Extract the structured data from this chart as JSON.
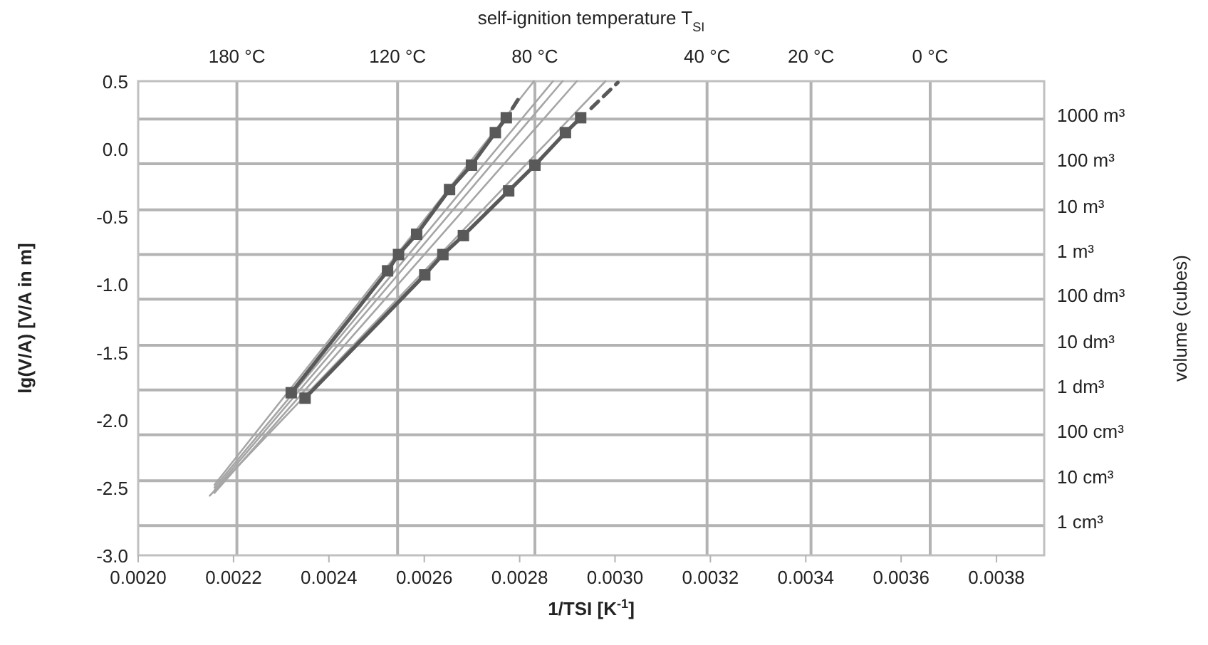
{
  "chart_data": {
    "type": "line",
    "xlabel": "1/TSI [K$^{-1}$]",
    "ylabel": "lg(V/A) [V/A in m]",
    "annotations": [
      "self-ignition temperature T$_{SI}$",
      "volume (cubes)"
    ],
    "xlim": [
      0.002,
      0.0039
    ],
    "ylim": [
      -3.0,
      0.5
    ],
    "xticks": [
      {
        "value": 0.002,
        "label": "0.0020"
      },
      {
        "value": 0.0022,
        "label": "0.0022"
      },
      {
        "value": 0.0024,
        "label": "0.0024"
      },
      {
        "value": 0.0026,
        "label": "0.0026"
      },
      {
        "value": 0.0028,
        "label": "0.0028"
      },
      {
        "value": 0.003,
        "label": "0.0030"
      },
      {
        "value": 0.0032,
        "label": "0.0032"
      },
      {
        "value": 0.0034,
        "label": "0.0034"
      },
      {
        "value": 0.0036,
        "label": "0.0036"
      },
      {
        "value": 0.0038,
        "label": "0.0038"
      }
    ],
    "yticks": [
      {
        "value": 0.5,
        "label": "0.5"
      },
      {
        "value": 0,
        "label": "0.0"
      },
      {
        "value": -0.5,
        "label": "-0.5"
      },
      {
        "value": -1,
        "label": "-1.0"
      },
      {
        "value": -1.5,
        "label": "-1.5"
      },
      {
        "value": -2,
        "label": "-2.0"
      },
      {
        "value": -2.5,
        "label": "-2.5"
      },
      {
        "value": -3,
        "label": "-3.0"
      }
    ],
    "ref_lines": [
      {
        "axis": "x",
        "value": 0.002207,
        "label": "180 °C",
        "color": "#b3b3b3"
      },
      {
        "axis": "x",
        "value": 0.002544,
        "label": "120 °C",
        "color": "#b3b3b3"
      },
      {
        "axis": "x",
        "value": 0.002832,
        "label": "80 °C",
        "color": "#b3b3b3"
      },
      {
        "axis": "x",
        "value": 0.003193,
        "label": "40 °C",
        "color": "#b3b3b3"
      },
      {
        "axis": "x",
        "value": 0.003411,
        "label": "20 °C",
        "color": "#b3b3b3"
      },
      {
        "axis": "x",
        "value": 0.003661,
        "label": "0 °C",
        "color": "#b3b3b3"
      },
      {
        "axis": "y",
        "value": 0.22,
        "label": "1000 m³",
        "color": "#b3b3b3"
      },
      {
        "axis": "y",
        "value": -0.11,
        "label": "100 m³",
        "color": "#b3b3b3"
      },
      {
        "axis": "y",
        "value": -0.45,
        "label": "10 m³",
        "color": "#b3b3b3"
      },
      {
        "axis": "y",
        "value": -0.78,
        "label": "1 m³",
        "color": "#b3b3b3"
      },
      {
        "axis": "y",
        "value": -1.11,
        "label": "100 dm³",
        "color": "#b3b3b3"
      },
      {
        "axis": "y",
        "value": -1.45,
        "label": "10 dm³",
        "color": "#b3b3b3"
      },
      {
        "axis": "y",
        "value": -1.78,
        "label": "1 dm³",
        "color": "#b3b3b3"
      },
      {
        "axis": "y",
        "value": -2.11,
        "label": "100 cm³",
        "color": "#b3b3b3"
      },
      {
        "axis": "y",
        "value": -2.45,
        "label": "10 cm³",
        "color": "#b3b3b3"
      },
      {
        "axis": "y",
        "value": -2.78,
        "label": "1 cm³",
        "color": "#b3b3b3"
      }
    ],
    "series": [
      {
        "color": "#a6a6a6",
        "marker": "none",
        "x": [
          0.00216,
          0.00283
        ],
        "values": [
          -2.48,
          0.5
        ]
      },
      {
        "color": "#a6a6a6",
        "marker": "none",
        "x": [
          0.00216,
          0.00287
        ],
        "values": [
          -2.5,
          0.5
        ]
      },
      {
        "color": "#a6a6a6",
        "marker": "none",
        "x": [
          0.00216,
          0.00289
        ],
        "values": [
          -2.52,
          0.5
        ]
      },
      {
        "color": "#a6a6a6",
        "marker": "none",
        "x": [
          0.00216,
          0.00292
        ],
        "values": [
          -2.54,
          0.5
        ]
      },
      {
        "color": "#a6a6a6",
        "marker": "none",
        "x": [
          0.00215,
          0.00298
        ],
        "values": [
          -2.56,
          0.5
        ]
      },
      {
        "color": "#595959",
        "marker": "none",
        "line_style": "dashed",
        "x": [
          0.002785,
          0.002803
        ],
        "values": [
          0.3,
          0.4
        ]
      },
      {
        "color": "#595959",
        "marker": "none",
        "line_style": "dashed",
        "x": [
          0.00295,
          0.003006
        ],
        "values": [
          0.3,
          0.49
        ]
      },
      {
        "color": "#595959",
        "marker": "square",
        "x": [
          0.002321,
          0.002523,
          0.002546,
          0.002584,
          0.002653,
          0.002699,
          0.002749,
          0.002772
        ],
        "values": [
          -1.8,
          -0.9,
          -0.78,
          -0.63,
          -0.3,
          -0.12,
          0.12,
          0.23
        ]
      },
      {
        "color": "#595959",
        "marker": "square",
        "x": [
          0.00235,
          0.002601,
          0.002639,
          0.002682,
          0.002777,
          0.002832,
          0.002896,
          0.002928
        ],
        "values": [
          -1.84,
          -0.93,
          -0.78,
          -0.64,
          -0.31,
          -0.12,
          0.12,
          0.23
        ]
      }
    ]
  }
}
